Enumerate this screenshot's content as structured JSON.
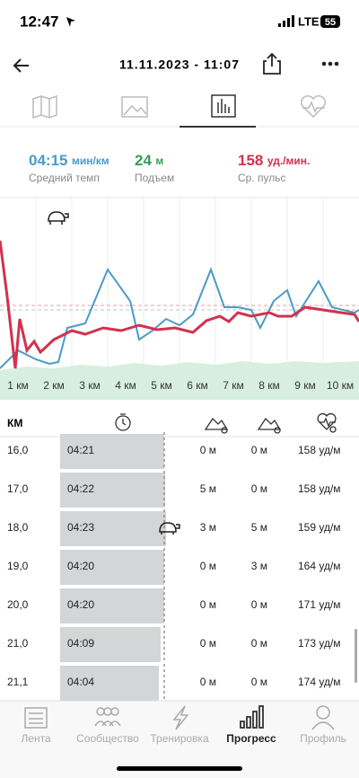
{
  "status_bar": {
    "time": "12:47",
    "network": "LTE",
    "battery": "55"
  },
  "header": {
    "title": "11.11.2023 - 11:07"
  },
  "stats": [
    {
      "value": "04:15",
      "unit": "мин/км",
      "label": "Средний темп"
    },
    {
      "value": "24",
      "unit": "м",
      "label": "Подъем"
    },
    {
      "value": "158",
      "unit": "уд./мин.",
      "label": "Ср. пульс"
    }
  ],
  "chart": {
    "x_labels": [
      "1 км",
      "2 км",
      "3 км",
      "4 км",
      "5 км",
      "6 км",
      "7 км",
      "8 км",
      "9 км",
      "10 км"
    ]
  },
  "table": {
    "header": "КМ",
    "rows": [
      [
        "16,0",
        "04:21",
        "0 м",
        "0 м",
        "158 уд/м"
      ],
      [
        "17,0",
        "04:22",
        "5 м",
        "0 м",
        "158 уд/м"
      ],
      [
        "18,0",
        "04:23",
        "3 м",
        "5 м",
        "159 уд/м"
      ],
      [
        "19,0",
        "04:20",
        "0 м",
        "3 м",
        "164 уд/м"
      ],
      [
        "20,0",
        "04:20",
        "0 м",
        "0 м",
        "171 уд/м"
      ],
      [
        "21,0",
        "04:09",
        "0 м",
        "0 м",
        "173 уд/м"
      ],
      [
        "21,1",
        "04:04",
        "0 м",
        "0 м",
        "174 уд/м"
      ]
    ]
  },
  "nav": [
    "Лента",
    "Сообщество",
    "Тренировка",
    "Прогресс",
    "Профиль"
  ]
}
